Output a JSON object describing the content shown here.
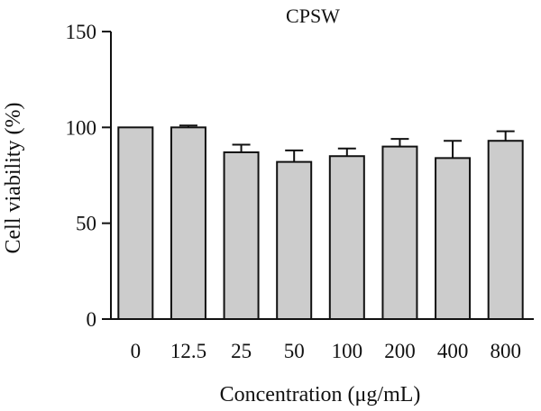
{
  "chart_data": {
    "type": "bar",
    "title": "CPSW",
    "xlabel": "Concentration (μg/mL)",
    "ylabel": "Cell viability (%)",
    "categories": [
      "0",
      "12.5",
      "25",
      "50",
      "100",
      "200",
      "400",
      "800"
    ],
    "values": [
      100,
      100,
      87,
      82,
      85,
      90,
      84,
      93
    ],
    "errors": [
      0,
      1,
      4,
      6,
      4,
      4,
      9,
      5
    ],
    "ylim": [
      0,
      150
    ],
    "yticks": [
      0,
      50,
      100,
      150
    ],
    "grid": false,
    "legend": "none",
    "bar_color": "#cccccc",
    "edge_color": "#111111"
  }
}
